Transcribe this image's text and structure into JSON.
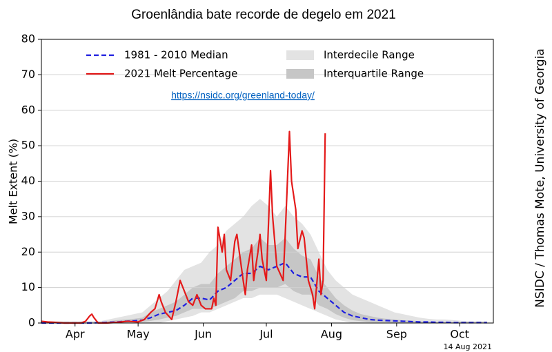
{
  "chart_data": {
    "type": "line",
    "title": "Groenlândia bate recorde de degelo em 2021",
    "ylabel": "Melt Extent (%)",
    "x": [
      89,
      93,
      97,
      101,
      105,
      109,
      113,
      117,
      121,
      125,
      129,
      133,
      137,
      141,
      145,
      149,
      153,
      157,
      161,
      165,
      169,
      173,
      177,
      181,
      185,
      189,
      193,
      197,
      201,
      205,
      209,
      213,
      217,
      221,
      225,
      229,
      233,
      237,
      241,
      245,
      249,
      253,
      257,
      261,
      265,
      269,
      273,
      277,
      281,
      285,
      289,
      293,
      297,
      301
    ],
    "xlim": [
      89,
      304
    ],
    "xticks": [
      {
        "value": 105,
        "label": "Apr"
      },
      {
        "value": 135,
        "label": "May"
      },
      {
        "value": 166,
        "label": "Jun"
      },
      {
        "value": 196,
        "label": "Jul"
      },
      {
        "value": 227,
        "label": "Aug"
      },
      {
        "value": 258,
        "label": "Sep"
      },
      {
        "value": 288,
        "label": "Oct"
      }
    ],
    "ylim": [
      0,
      80
    ],
    "yticks": [
      0,
      10,
      20,
      30,
      40,
      50,
      60,
      70,
      80
    ],
    "grid": true,
    "ranges": [
      {
        "name": "Interdecile Range",
        "color": "#e3e3e3",
        "upper": [
          0.5,
          0.5,
          0.5,
          0.5,
          0.5,
          0.5,
          0.5,
          0.5,
          1,
          1.5,
          2,
          2.5,
          3,
          5,
          7,
          9,
          12,
          15,
          16,
          17,
          20,
          22,
          26,
          28,
          30,
          33,
          35,
          33,
          30,
          33,
          30,
          28,
          25,
          20,
          15,
          12,
          10,
          8,
          7,
          6,
          5,
          4,
          3,
          2.5,
          2,
          1.5,
          1.2,
          1,
          1,
          0.8,
          0.6,
          0.5,
          0.5,
          0.5
        ],
        "lower": [
          0,
          0,
          0,
          0,
          0,
          0,
          0,
          0,
          0,
          0,
          0,
          0,
          0,
          0,
          0,
          0.5,
          1,
          1.5,
          2,
          3,
          3,
          4,
          5,
          6,
          7,
          7,
          8,
          8,
          8,
          7,
          6,
          5,
          4,
          3,
          2,
          1,
          0.5,
          0,
          0,
          0,
          0,
          0,
          0,
          0,
          0,
          0,
          0,
          0,
          0,
          0,
          0,
          0,
          0,
          0
        ]
      },
      {
        "name": "Interquartile Range",
        "color": "#c6c6c6",
        "upper": [
          0,
          0,
          0,
          0,
          0,
          0,
          0,
          0.3,
          0.5,
          0.8,
          1,
          1.2,
          1.5,
          3,
          4,
          5,
          6,
          8,
          10,
          11,
          11,
          14,
          16,
          18,
          20,
          21,
          24,
          22,
          22,
          24,
          21,
          19,
          18,
          13,
          10,
          7,
          5,
          3.5,
          2.5,
          2,
          1.5,
          1.2,
          1,
          0.8,
          0.7,
          0.5,
          0.4,
          0.3,
          0.3,
          0.2,
          0.2,
          0.2,
          0.2,
          0.2
        ],
        "lower": [
          0,
          0,
          0,
          0,
          0,
          0,
          0,
          0,
          0,
          0,
          0.1,
          0.2,
          0.3,
          0.6,
          1,
          1.5,
          2,
          3,
          4,
          4,
          4,
          5,
          6,
          7,
          9,
          9,
          10,
          10,
          10,
          11,
          9,
          8,
          8,
          5,
          4,
          2.5,
          1.5,
          0.8,
          0.5,
          0.3,
          0.2,
          0.2,
          0.1,
          0.1,
          0.1,
          0,
          0,
          0,
          0,
          0,
          0,
          0,
          0,
          0
        ]
      }
    ],
    "series": [
      {
        "name": "1981 - 2010 Median",
        "color": "#1f1fe0",
        "dashed": true,
        "values": [
          0,
          0,
          0,
          0,
          0,
          0,
          0,
          0.1,
          0.2,
          0.3,
          0.5,
          0.6,
          0.8,
          1.5,
          2.5,
          3,
          3.5,
          5,
          7,
          7,
          6.5,
          9,
          10,
          12,
          14,
          14,
          16,
          15,
          16,
          17,
          14,
          13,
          13,
          9,
          7,
          5,
          3,
          2,
          1.5,
          1,
          0.8,
          0.7,
          0.6,
          0.5,
          0.4,
          0.3,
          0.3,
          0.2,
          0.2,
          0.1,
          0.1,
          0.1,
          0.1,
          0.1
        ]
      },
      {
        "name": "2021 Melt Percentage",
        "color": "#e41a1a",
        "dashed": false,
        "x": [
          89,
          92,
          95,
          100,
          108,
          110,
          112,
          113,
          114,
          116,
          120,
          125,
          130,
          135,
          138,
          141,
          143,
          145,
          146,
          148,
          151,
          153,
          155,
          157,
          159,
          161,
          163,
          165,
          167,
          170,
          171,
          172,
          173,
          175,
          176,
          177,
          179,
          181,
          182,
          185,
          186,
          187,
          189,
          190,
          192,
          193,
          194,
          196,
          198,
          199,
          201,
          204,
          205,
          207,
          208,
          210,
          211,
          213,
          214,
          216,
          218,
          219,
          221,
          222,
          223,
          224
        ],
        "values": [
          0.5,
          0.3,
          0.2,
          0,
          0,
          0.5,
          2,
          2.5,
          1.5,
          0,
          0,
          0.2,
          0.5,
          0.3,
          1,
          3,
          4,
          8,
          6,
          3,
          1,
          6,
          12,
          9,
          6,
          5,
          8,
          5,
          4,
          4,
          7,
          5,
          27,
          20,
          25,
          15,
          12,
          23,
          25,
          12,
          8,
          15,
          22,
          12,
          20,
          25,
          18,
          12,
          43,
          30,
          16,
          12,
          25,
          54,
          40,
          32,
          21,
          26,
          24,
          12,
          8,
          4,
          18,
          8,
          12,
          53.5
        ]
      }
    ]
  },
  "link": "https://nsidc.org/greenland-today/",
  "date_label": "14 Aug 2021",
  "credit": "NSIDC / Thomas Mote, University of Georgia"
}
